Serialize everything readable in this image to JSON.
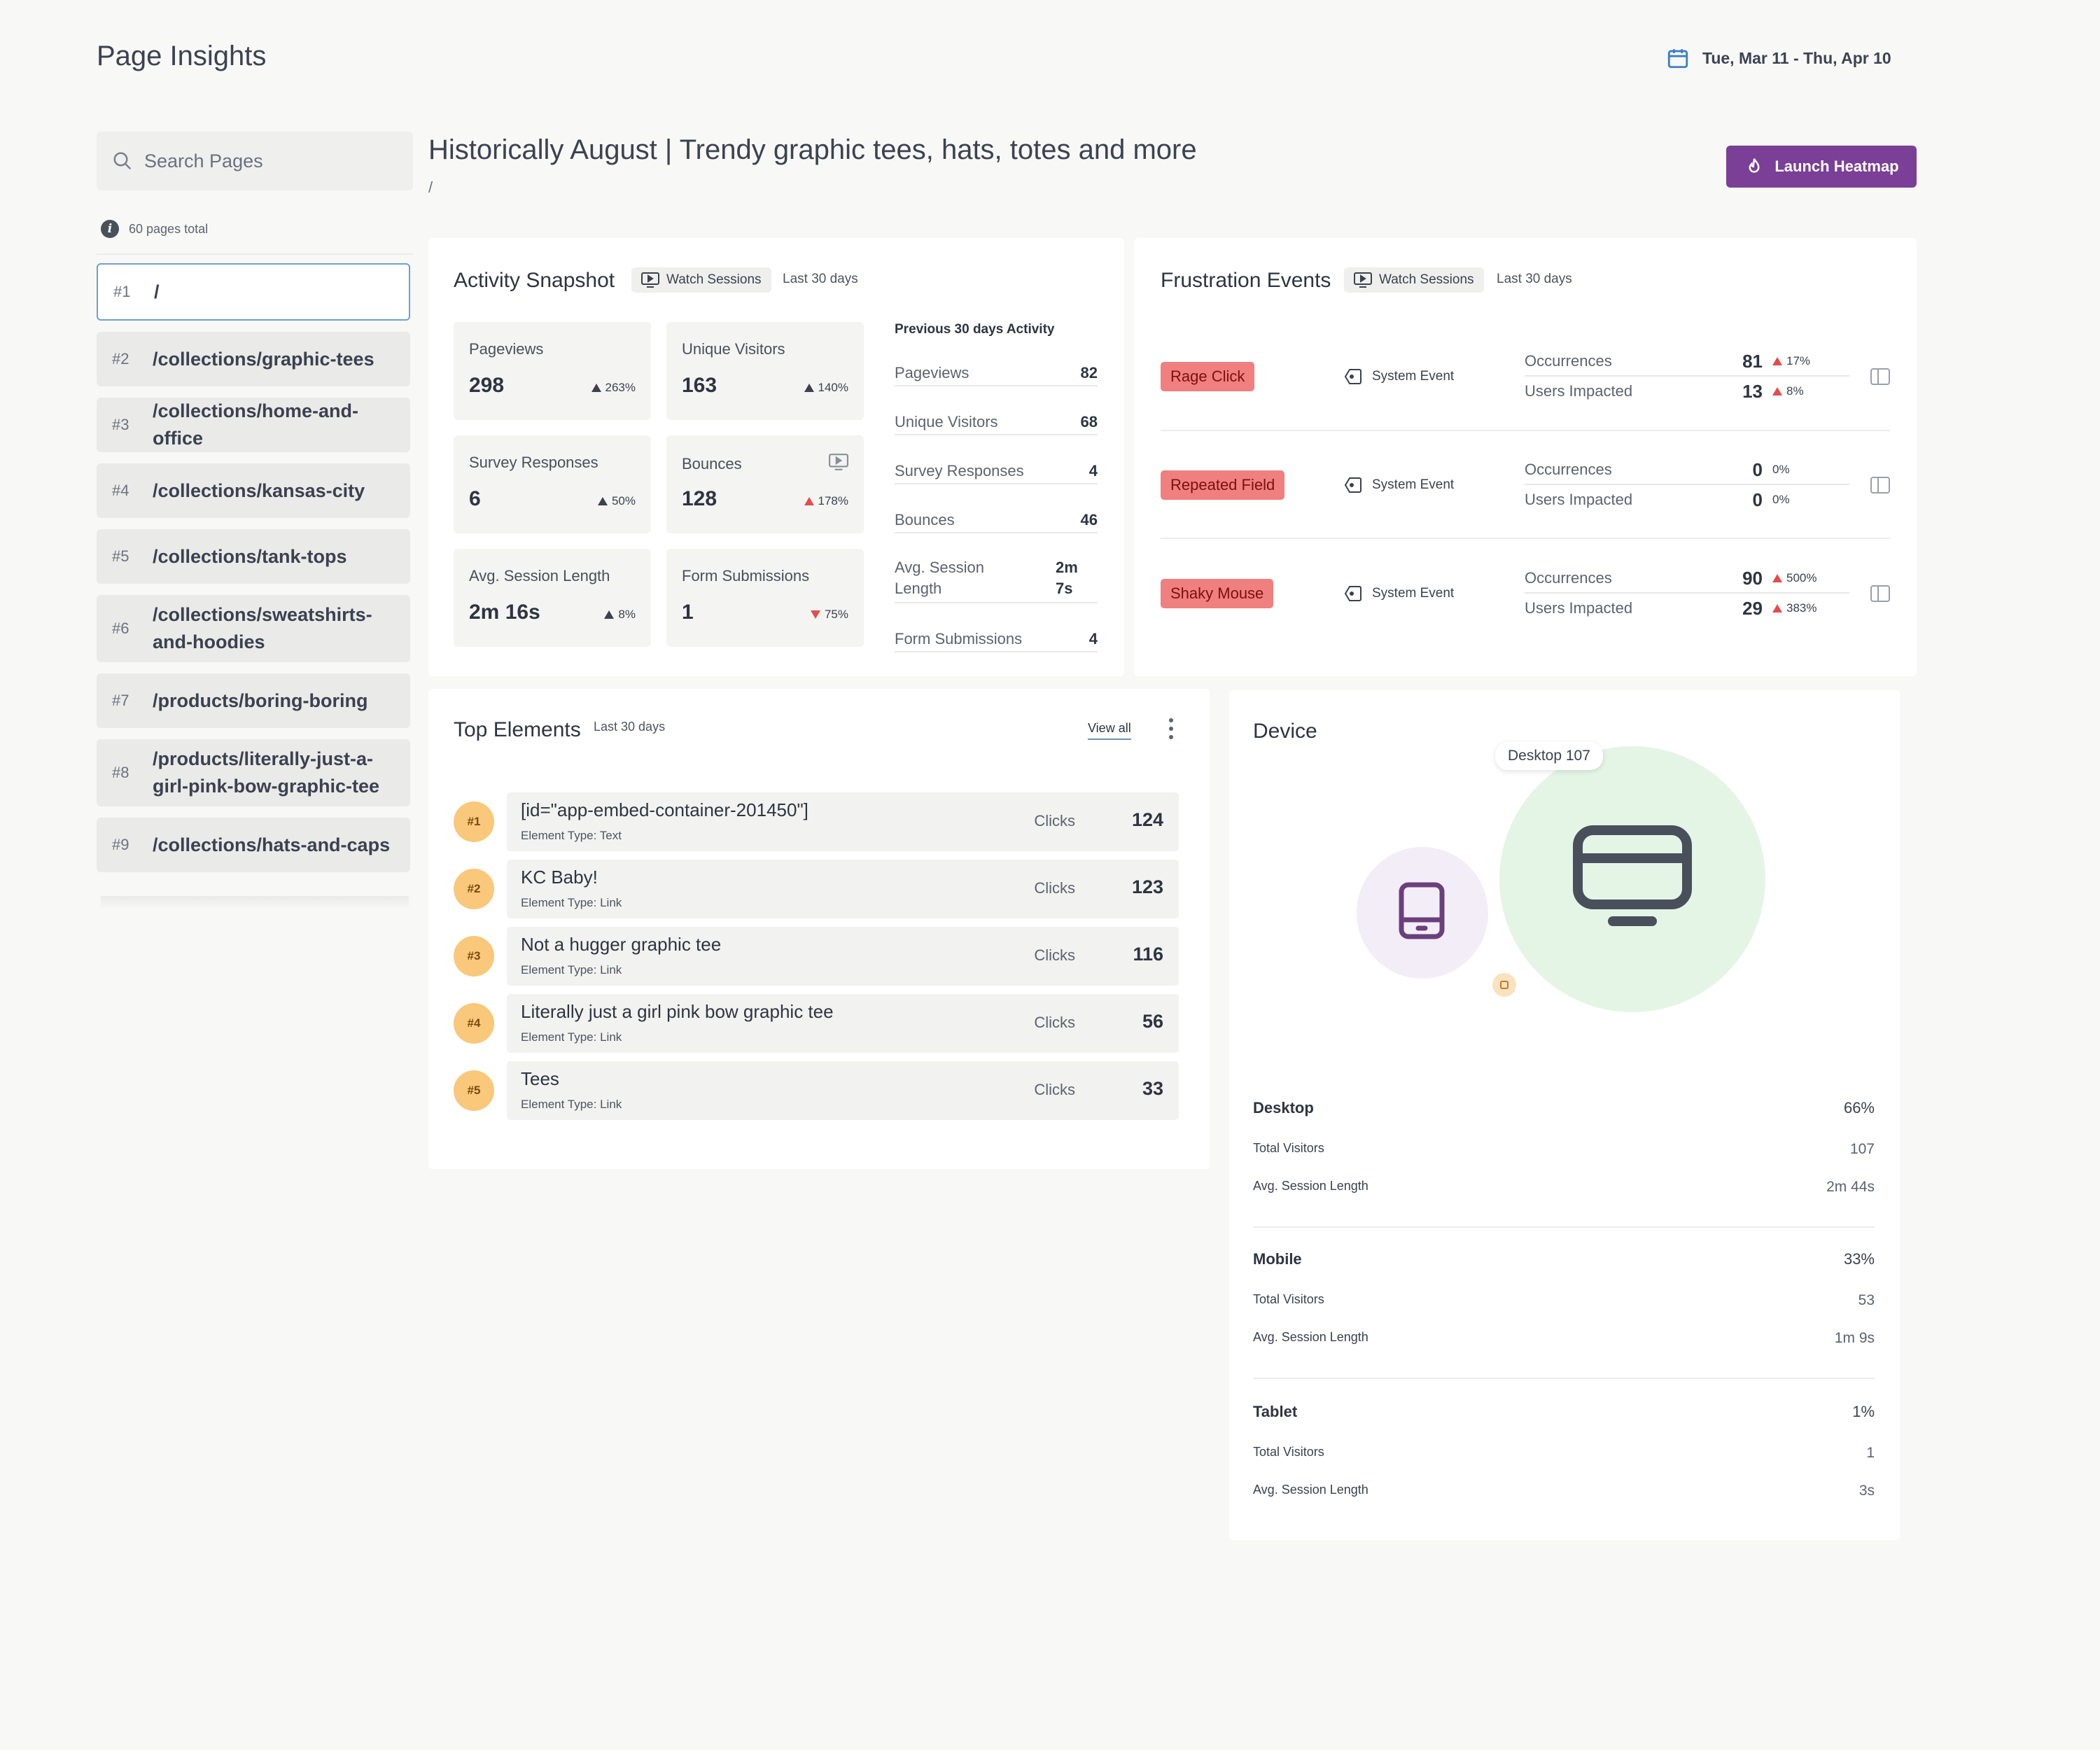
{
  "header": {
    "title": "Page Insights",
    "date_range": "Tue, Mar 11 - Thu, Apr 10"
  },
  "sidebar": {
    "search_placeholder": "Search Pages",
    "pages_total": "60 pages total",
    "items": [
      {
        "num": "#1",
        "label": "/"
      },
      {
        "num": "#2",
        "label": "/collections/graphic-tees"
      },
      {
        "num": "#3",
        "label": "/collections/home-and-office"
      },
      {
        "num": "#4",
        "label": "/collections/kansas-city"
      },
      {
        "num": "#5",
        "label": "/collections/tank-tops"
      },
      {
        "num": "#6",
        "label": "/collections/sweatshirts-and-hoodies"
      },
      {
        "num": "#7",
        "label": "/products/boring-boring"
      },
      {
        "num": "#8",
        "label": "/products/literally-just-a-girl-pink-bow-graphic-tee"
      },
      {
        "num": "#9",
        "label": "/collections/hats-and-caps"
      }
    ]
  },
  "main": {
    "title": "Historically August | Trendy graphic tees, hats, totes and more",
    "path": "/",
    "launch_label": "Launch Heatmap"
  },
  "activity": {
    "title": "Activity Snapshot",
    "watch_label": "Watch Sessions",
    "period": "Last 30 days",
    "stats": [
      {
        "label": "Pageviews",
        "value": "298",
        "delta": "263%",
        "dir": "up"
      },
      {
        "label": "Unique Visitors",
        "value": "163",
        "delta": "140%",
        "dir": "up"
      },
      {
        "label": "Survey Responses",
        "value": "6",
        "delta": "50%",
        "dir": "up"
      },
      {
        "label": "Bounces",
        "value": "128",
        "delta": "178%",
        "dir": "up-red"
      },
      {
        "label": "Avg. Session Length",
        "value": "2m 16s",
        "delta": "8%",
        "dir": "up"
      },
      {
        "label": "Form Submissions",
        "value": "1",
        "delta": "75%",
        "dir": "down-red"
      }
    ],
    "previous_title": "Previous 30 days Activity",
    "previous": [
      {
        "label": "Pageviews",
        "value": "82"
      },
      {
        "label": "Unique Visitors",
        "value": "68"
      },
      {
        "label": "Survey Responses",
        "value": "4"
      },
      {
        "label": "Bounces",
        "value": "46"
      },
      {
        "label": "Avg. Session Length",
        "value": "2m 7s"
      },
      {
        "label": "Form Submissions",
        "value": "4"
      }
    ]
  },
  "frustration": {
    "title": "Frustration Events",
    "watch_label": "Watch Sessions",
    "period": "Last 30 days",
    "occurrences_label": "Occurrences",
    "users_label": "Users Impacted",
    "events": [
      {
        "name": "Rage Click",
        "type": "System Event",
        "occ": "81",
        "occ_delta": "17%",
        "occ_dir": "up",
        "users": "13",
        "users_delta": "8%",
        "users_dir": "up"
      },
      {
        "name": "Repeated Field",
        "type": "System Event",
        "occ": "0",
        "occ_delta": "0%",
        "occ_dir": "none",
        "users": "0",
        "users_delta": "0%",
        "users_dir": "none"
      },
      {
        "name": "Shaky Mouse",
        "type": "System Event",
        "occ": "90",
        "occ_delta": "500%",
        "occ_dir": "up",
        "users": "29",
        "users_delta": "383%",
        "users_dir": "up"
      }
    ]
  },
  "top_elements": {
    "title": "Top Elements",
    "period": "Last 30 days",
    "view_all": "View all",
    "clicks_label": "Clicks",
    "items": [
      {
        "rank": "#1",
        "name": "[id=\"app-embed-container-201450\"]",
        "type": "Element Type: Text",
        "count": "124"
      },
      {
        "rank": "#2",
        "name": "KC Baby!",
        "type": "Element Type: Link",
        "count": "123"
      },
      {
        "rank": "#3",
        "name": "Not a hugger graphic tee",
        "type": "Element Type: Link",
        "count": "116"
      },
      {
        "rank": "#4",
        "name": "Literally just a girl pink bow graphic tee",
        "type": "Element Type: Link",
        "count": "56"
      },
      {
        "rank": "#5",
        "name": "Tees",
        "type": "Element Type: Link",
        "count": "33"
      }
    ]
  },
  "device": {
    "title": "Device",
    "tooltip": "Desktop 107",
    "total_label": "Total Visitors",
    "session_label": "Avg. Session Length",
    "segments": [
      {
        "name": "Desktop",
        "pct": "66%",
        "visitors": "107",
        "session": "2m 44s"
      },
      {
        "name": "Mobile",
        "pct": "33%",
        "visitors": "53",
        "session": "1m 9s"
      },
      {
        "name": "Tablet",
        "pct": "1%",
        "visitors": "1",
        "session": "3s"
      }
    ],
    "colors": {
      "desktop": "#e4f5e6",
      "mobile": "#f3edf7",
      "tablet": "#f9c87a"
    }
  }
}
